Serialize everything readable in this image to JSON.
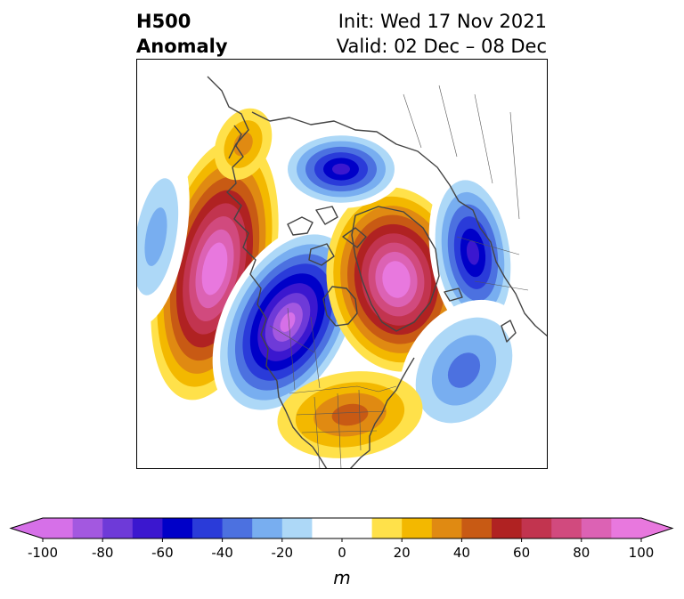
{
  "title": {
    "left_line1": "H500",
    "left_line2": "Anomaly",
    "right_line1": "Init: Wed 17 Nov 2021",
    "right_line2": "Valid: 02 Dec – 08 Dec"
  },
  "colorbar": {
    "unit_label": "m",
    "tick_labels": [
      "-100",
      "-80",
      "-60",
      "-40",
      "-20",
      "0",
      "20",
      "40",
      "60",
      "80",
      "100"
    ],
    "tick_values": [
      -100,
      -80,
      -60,
      -40,
      -20,
      0,
      20,
      40,
      60,
      80,
      100
    ],
    "range": [
      -100,
      100
    ],
    "levels": [
      -100,
      -90,
      -80,
      -70,
      -60,
      -50,
      -40,
      -30,
      -20,
      -10,
      10,
      20,
      30,
      40,
      50,
      60,
      70,
      80,
      90,
      100
    ],
    "colors": [
      "#d670e8",
      "#a358e0",
      "#6e3ad8",
      "#3b17cf",
      "#0000c8",
      "#2a3bd9",
      "#4c71e0",
      "#78aef0",
      "#add8f7",
      "#ffffff",
      "#ffe14a",
      "#f3b800",
      "#e08a12",
      "#c85a14",
      "#b02222",
      "#c2344f",
      "#d14a7e",
      "#dc62b4",
      "#e878de"
    ],
    "extend_low_color": "#d670e8",
    "extend_high_color": "#e878de"
  },
  "map": {
    "projection": "polar stereographic (Northern Hemisphere)",
    "coastline_color": "#444444",
    "anomaly_centers": [
      {
        "region": "North Pacific / Gulf of Alaska",
        "sign": "positive",
        "peak": 100
      },
      {
        "region": "Western Canada",
        "sign": "negative",
        "peak": -100
      },
      {
        "region": "Greenland",
        "sign": "positive",
        "peak": 100
      },
      {
        "region": "Northern Siberia / Arctic",
        "sign": "negative",
        "peak": -70
      },
      {
        "region": "Scandinavia / Western Russia",
        "sign": "negative",
        "peak": -70
      },
      {
        "region": "North Atlantic",
        "sign": "negative",
        "peak": -40
      },
      {
        "region": "Eastern United States",
        "sign": "positive",
        "peak": 40
      }
    ]
  }
}
